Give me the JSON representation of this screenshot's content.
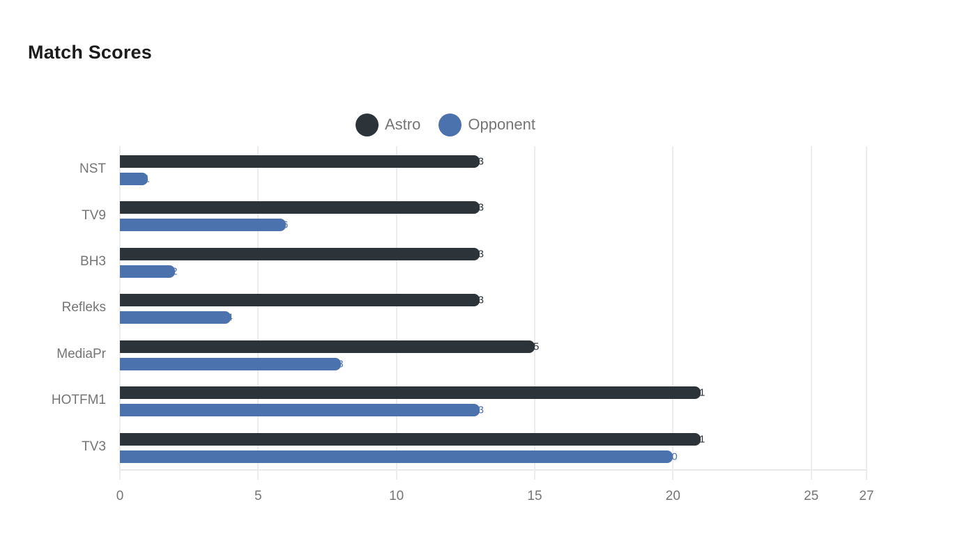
{
  "chart_data": {
    "type": "bar",
    "orientation": "horizontal",
    "title": "Match Scores",
    "xlabel": "",
    "ylabel": "",
    "categories": [
      "NST",
      "TV9",
      "BH3",
      "Refleks",
      "MediaPr",
      "HOTFM1",
      "TV3"
    ],
    "series": [
      {
        "name": "Astro",
        "color": "#2c343a",
        "values": [
          13,
          13,
          13,
          13,
          15,
          21,
          21
        ]
      },
      {
        "name": "Opponent",
        "color": "#4b72ad",
        "values": [
          1,
          6,
          2,
          4,
          8,
          13,
          20
        ]
      }
    ],
    "x_ticks": [
      0,
      5,
      10,
      15,
      20,
      25,
      27
    ],
    "xlim": [
      0,
      27
    ],
    "grid": true,
    "legend_position": "top-center",
    "value_labels": "at-bar-end-same-color",
    "colors": {
      "title_text": "#1c1c1c",
      "axis_text": "#757575",
      "gridline": "#ececec",
      "background": "#ffffff"
    }
  }
}
